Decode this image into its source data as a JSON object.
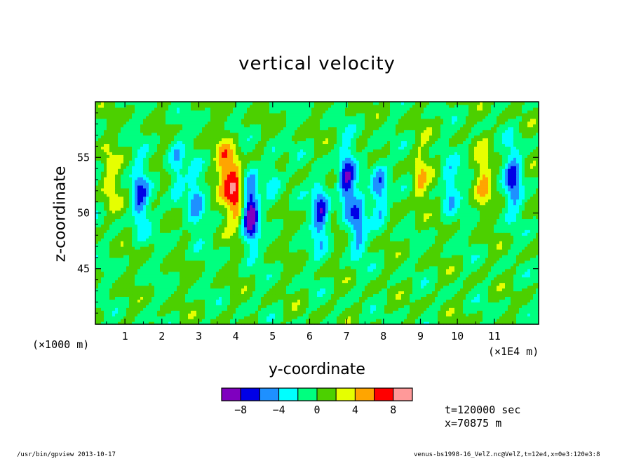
{
  "chart_data": {
    "type": "heatmap",
    "title": "vertical velocity",
    "xlabel": "y-coordinate",
    "ylabel": "z-coordinate",
    "x_unit_label": "(×1E4 m)",
    "y_unit_label": "(×1000 m)",
    "xlim": [
      0.2,
      12.2
    ],
    "ylim": [
      40,
      60
    ],
    "x_ticks": [
      "1",
      "2",
      "3",
      "4",
      "5",
      "6",
      "7",
      "8",
      "9",
      "10",
      "11"
    ],
    "y_ticks": [
      "45",
      "50",
      "55"
    ],
    "colorbar": {
      "levels": [
        -10,
        -8,
        -6,
        -4,
        -2,
        0,
        2,
        4,
        6,
        8,
        10
      ],
      "tick_labels": [
        "-8",
        "-4",
        "0",
        "4",
        "8"
      ],
      "colors": [
        "#7f00bf",
        "#0000e6",
        "#1e90ff",
        "#00ffff",
        "#00ff7f",
        "#4cd000",
        "#e6ff00",
        "#ffa500",
        "#ff0000",
        "#ff9999"
      ]
    },
    "features": [
      {
        "y": 1.4,
        "z": 51.5,
        "w": -6
      },
      {
        "y": 2.4,
        "z": 54,
        "w": -4
      },
      {
        "y": 2.9,
        "z": 51,
        "w": -4
      },
      {
        "y": 3.7,
        "z": 54,
        "w": 5
      },
      {
        "y": 4.4,
        "z": 50,
        "w": -9
      },
      {
        "y": 4.0,
        "z": 52,
        "w": 7
      },
      {
        "y": 5.0,
        "z": 53,
        "w": -3
      },
      {
        "y": 6.3,
        "z": 50,
        "w": -7
      },
      {
        "y": 7.0,
        "z": 53,
        "w": -7
      },
      {
        "y": 7.3,
        "z": 49,
        "w": -5
      },
      {
        "y": 7.9,
        "z": 52,
        "w": -6
      },
      {
        "y": 9.0,
        "z": 53,
        "w": 4
      },
      {
        "y": 9.8,
        "z": 52,
        "w": -4
      },
      {
        "y": 10.7,
        "z": 53,
        "w": 4
      },
      {
        "y": 11.5,
        "z": 53,
        "w": -6
      },
      {
        "y": 0.6,
        "z": 53,
        "w": 3
      }
    ]
  },
  "annotations": {
    "time": "t=120000 sec",
    "xpos": "x=70875 m"
  },
  "footer": {
    "left": "/usr/bin/gpview  2013-10-17",
    "right": "venus-bs1998-16_VelZ.nc@VelZ,t=12e4,x=0e3:120e3:8"
  }
}
